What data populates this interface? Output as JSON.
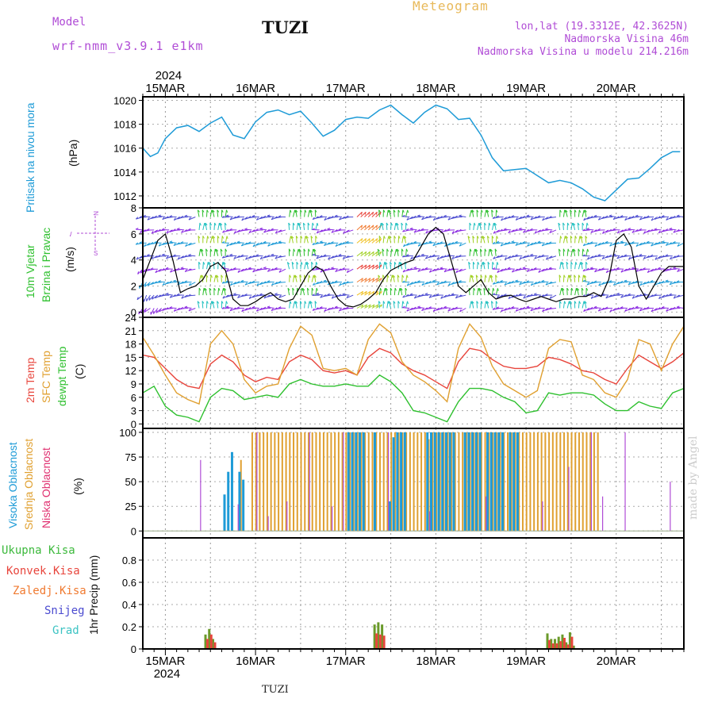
{
  "header": {
    "model_label": "Model",
    "model_run": "wrf-nmm_v3.9.1 e1km",
    "station": "TUZI",
    "title": "Meteogram",
    "lonlat": "lon,lat (19.3312E, 42.3625N)",
    "elevation": "Nadmorska Visina 46m",
    "model_elevation": "Nadmorska Visina u modelu 214.216m"
  },
  "footer": {
    "station": "TUZI",
    "watermark": "made by Angel"
  },
  "time_axis": {
    "year": "2024",
    "day_labels": [
      "15MAR",
      "16MAR",
      "17MAR",
      "18MAR",
      "19MAR",
      "20MAR"
    ],
    "x_range_hours": [
      -6,
      138
    ]
  },
  "colors": {
    "pressure": "#1e9bd7",
    "wind_speed": "#000000",
    "temp_2m": "#e8453c",
    "temp_sfc": "#e0a030",
    "dewpoint": "#2ec02e",
    "cloud_high": "#1e9bd7",
    "cloud_mid": "#e0a030",
    "cloud_low": "#b04cd6",
    "precip_total": "#3cb93c",
    "precip_conv": "#e8453c",
    "precip_frozen": "#f07a30",
    "precip_snow": "#4b4bd0",
    "precip_grad": "#3cc3c3"
  },
  "panel_labels": {
    "pressure": [
      "Pritisak na nivou mora",
      "(hPa)"
    ],
    "wind": [
      "10m Vjetar",
      "Brzina i Pravac",
      "(m/s)"
    ],
    "wind_compass": {
      "n": "N",
      "e": "E",
      "w": "W",
      "s": "S"
    },
    "temp": [
      "2m Temp",
      "SFC Temp",
      "dewpt Temp",
      "(C)"
    ],
    "cloud": [
      "Visoka Oblacnost",
      "Srednja Oblacnost",
      "Niska Oblacnost",
      "(%)"
    ],
    "precip_legend": [
      "Ukupna Kisa",
      "Konvek.Kisa",
      "Zaledj.Kisa",
      "Snijeg",
      "Grad"
    ],
    "precip_axis": "1hr Precip (mm)"
  },
  "chart_data": [
    {
      "type": "line",
      "panel": "pressure",
      "ylabel": "(hPa)",
      "ylim": [
        1011,
        1020.3
      ],
      "yticks": [
        1012,
        1014,
        1016,
        1018,
        1020
      ],
      "x": [
        -6,
        -4,
        -2,
        0,
        3,
        6,
        9,
        12,
        15,
        18,
        21,
        24,
        27,
        30,
        33,
        36,
        39,
        42,
        45,
        48,
        51,
        54,
        57,
        60,
        63,
        66,
        69,
        72,
        75,
        78,
        81,
        84,
        87,
        90,
        93,
        96,
        99,
        102,
        105,
        108,
        111,
        114,
        117,
        120,
        123,
        126,
        129,
        132,
        135,
        137
      ],
      "series": [
        {
          "name": "Pritisak na nivou mora",
          "values": [
            1016.0,
            1015.3,
            1015.6,
            1016.8,
            1017.7,
            1017.9,
            1017.4,
            1018.1,
            1018.6,
            1017.1,
            1016.8,
            1018.2,
            1019.0,
            1019.2,
            1018.8,
            1019.1,
            1018.1,
            1017.0,
            1017.5,
            1018.4,
            1018.6,
            1018.5,
            1019.2,
            1019.6,
            1018.8,
            1018.1,
            1019.0,
            1019.6,
            1019.3,
            1018.4,
            1018.5,
            1017.1,
            1015.2,
            1014.1,
            1014.2,
            1014.3,
            1013.7,
            1013.1,
            1013.3,
            1013.1,
            1012.6,
            1011.9,
            1011.6,
            1012.5,
            1013.4,
            1013.5,
            1014.3,
            1015.2,
            1015.7,
            1015.7
          ]
        }
      ]
    },
    {
      "type": "line",
      "panel": "wind",
      "ylabel": "(m/s)",
      "ylim": [
        -0.4,
        8
      ],
      "yticks": [
        0,
        2,
        4,
        6,
        8
      ],
      "x": [
        -6,
        -4,
        -2,
        0,
        2,
        4,
        6,
        8,
        10,
        12,
        14,
        16,
        18,
        20,
        22,
        24,
        26,
        28,
        30,
        32,
        34,
        36,
        38,
        40,
        42,
        44,
        46,
        48,
        50,
        52,
        54,
        56,
        58,
        60,
        62,
        64,
        66,
        68,
        70,
        72,
        74,
        76,
        78,
        80,
        82,
        84,
        86,
        88,
        90,
        92,
        94,
        96,
        98,
        100,
        102,
        104,
        106,
        108,
        110,
        112,
        114,
        116,
        118,
        120,
        122,
        124,
        126,
        128,
        130,
        132,
        134,
        136,
        138
      ],
      "series": [
        {
          "name": "10m Vjetar",
          "values": [
            2.5,
            4.0,
            5.5,
            6.0,
            4.0,
            1.5,
            1.8,
            2.0,
            2.5,
            3.5,
            3.8,
            3.2,
            1.0,
            0.5,
            0.5,
            0.8,
            1.2,
            1.5,
            1.0,
            0.8,
            1.0,
            2.0,
            3.0,
            3.5,
            3.2,
            2.0,
            1.0,
            0.5,
            0.4,
            0.6,
            1.0,
            1.5,
            2.5,
            3.2,
            3.5,
            3.8,
            4.0,
            5.0,
            6.0,
            6.5,
            6.0,
            4.0,
            2.0,
            1.5,
            2.0,
            2.5,
            1.5,
            1.0,
            1.2,
            1.3,
            1.0,
            0.8,
            1.0,
            1.2,
            1.0,
            0.8,
            1.0,
            1.0,
            1.2,
            1.2,
            1.5,
            1.2,
            2.5,
            5.5,
            6.0,
            5.0,
            2.0,
            1.0,
            2.0,
            3.0,
            3.5,
            3.5,
            3.5
          ]
        }
      ],
      "wind_barbs": "direction arrows every hour, colored by speed; strong southerly flow bands near 15MAR 12h, 16MAR 12h, 17MAR 12h, 18MAR 12h and 19MAR 12h"
    },
    {
      "type": "line",
      "panel": "temperature",
      "ylabel": "(C)",
      "ylim": [
        -1,
        24
      ],
      "yticks": [
        0,
        3,
        6,
        9,
        12,
        15,
        18,
        21,
        24
      ],
      "x": [
        -6,
        -3,
        0,
        3,
        6,
        9,
        12,
        15,
        18,
        21,
        24,
        27,
        30,
        33,
        36,
        39,
        42,
        45,
        48,
        51,
        54,
        57,
        60,
        63,
        66,
        69,
        72,
        75,
        78,
        81,
        84,
        87,
        90,
        93,
        96,
        99,
        102,
        105,
        108,
        111,
        114,
        117,
        120,
        123,
        126,
        129,
        132,
        135,
        138
      ],
      "series": [
        {
          "name": "2m Temp",
          "values": [
            15.5,
            15.0,
            12.5,
            10.0,
            8.5,
            8.0,
            13.5,
            15.5,
            14.0,
            11.0,
            9.5,
            10.5,
            10.0,
            14.0,
            15.5,
            14.5,
            12.0,
            11.5,
            12.0,
            11.0,
            15.0,
            17.0,
            16.0,
            13.5,
            12.0,
            11.0,
            9.5,
            8.0,
            14.0,
            17.0,
            16.5,
            14.5,
            13.0,
            12.5,
            12.5,
            13.0,
            15.0,
            14.5,
            13.5,
            12.0,
            11.5,
            10.0,
            9.0,
            12.5,
            15.5,
            14.0,
            12.5,
            14.0,
            16.0
          ]
        },
        {
          "name": "SFC Temp",
          "values": [
            19.5,
            15.5,
            11.0,
            7.0,
            5.5,
            4.5,
            18.0,
            21.0,
            18.0,
            10.0,
            7.0,
            8.5,
            9.0,
            17.0,
            22.0,
            20.0,
            12.5,
            12.0,
            12.5,
            11.0,
            19.0,
            22.5,
            20.5,
            14.0,
            11.0,
            9.5,
            7.5,
            5.0,
            17.0,
            22.5,
            19.5,
            13.0,
            9.0,
            7.5,
            6.0,
            7.5,
            17.0,
            19.0,
            18.5,
            11.0,
            10.0,
            7.0,
            6.0,
            10.0,
            19.0,
            18.0,
            12.0,
            18.0,
            22.0
          ]
        },
        {
          "name": "dewpt Temp",
          "values": [
            7.0,
            8.5,
            4.0,
            2.0,
            1.5,
            0.5,
            6.0,
            8.0,
            7.5,
            5.5,
            6.0,
            6.5,
            6.0,
            9.0,
            10.0,
            9.0,
            8.5,
            8.5,
            9.0,
            8.5,
            8.5,
            11.0,
            9.5,
            7.0,
            3.0,
            2.5,
            1.5,
            0.5,
            5.0,
            8.0,
            8.0,
            7.5,
            6.0,
            5.0,
            2.5,
            3.0,
            7.0,
            6.5,
            7.0,
            7.0,
            6.5,
            4.5,
            3.0,
            3.0,
            5.0,
            4.0,
            3.5,
            7.0,
            8.0
          ]
        }
      ]
    },
    {
      "type": "bar",
      "panel": "cloud",
      "ylabel": "(%)",
      "ylim": [
        -7,
        104
      ],
      "yticks": [
        0,
        25,
        50,
        75,
        100
      ],
      "series": [
        {
          "name": "Visoka Oblacnost",
          "x": [
            16,
            17,
            18,
            20,
            21,
            49,
            50,
            51,
            52,
            53,
            56,
            60,
            61,
            62,
            63,
            64,
            70,
            71,
            72,
            73,
            74,
            75,
            76,
            77,
            80,
            81,
            82,
            83,
            84,
            86,
            87,
            88,
            89,
            90,
            92,
            93,
            94
          ],
          "values": [
            37,
            60,
            80,
            60,
            52,
            100,
            100,
            100,
            100,
            100,
            100,
            30,
            95,
            100,
            100,
            100,
            100,
            100,
            100,
            100,
            100,
            100,
            100,
            100,
            100,
            100,
            100,
            100,
            100,
            100,
            100,
            100,
            100,
            100,
            100,
            100,
            100
          ]
        },
        {
          "name": "Srednja Oblacnost",
          "x": [
            20,
            23,
            24,
            25,
            26,
            27,
            28,
            29,
            30,
            31,
            32,
            33,
            34,
            35,
            36,
            37,
            38,
            39,
            40,
            41,
            42,
            43,
            44,
            45,
            46,
            47,
            48,
            49,
            50,
            51,
            52,
            53,
            54,
            55,
            56,
            57,
            58,
            59,
            60,
            61,
            62,
            63,
            64,
            65,
            66,
            67,
            68,
            69,
            70,
            71,
            72,
            73,
            74,
            75,
            76,
            77,
            78,
            79,
            80,
            81,
            82,
            83,
            84,
            85,
            86,
            87,
            88,
            89,
            90,
            91,
            92,
            93,
            94,
            95,
            96,
            97,
            98,
            99,
            100,
            101,
            102,
            103,
            104,
            105,
            106,
            107,
            108,
            109,
            110,
            111,
            112,
            113,
            114,
            115
          ],
          "values": [
            72,
            100,
            100,
            100,
            100,
            100,
            100,
            100,
            100,
            100,
            100,
            100,
            100,
            100,
            100,
            100,
            100,
            100,
            100,
            100,
            100,
            100,
            100,
            100,
            100,
            100,
            100,
            100,
            100,
            100,
            100,
            100,
            100,
            100,
            100,
            100,
            100,
            100,
            100,
            100,
            100,
            100,
            100,
            100,
            100,
            100,
            100,
            100,
            93,
            100,
            100,
            100,
            100,
            100,
            100,
            100,
            100,
            100,
            100,
            100,
            100,
            100,
            100,
            100,
            100,
            100,
            100,
            100,
            100,
            100,
            100,
            100,
            100,
            100,
            100,
            100,
            100,
            100,
            100,
            100,
            100,
            100,
            100,
            100,
            100,
            100,
            100,
            100,
            100,
            100,
            100,
            100,
            100,
            100
          ]
        },
        {
          "name": "Niska Oblacnost",
          "x": [
            9,
            19,
            24,
            27,
            32,
            38,
            44,
            47,
            59,
            70,
            85,
            100,
            107,
            113,
            116,
            122,
            134
          ],
          "values": [
            72,
            27,
            100,
            15,
            30,
            100,
            25,
            100,
            100,
            20,
            35,
            30,
            65,
            100,
            35,
            100,
            50
          ]
        }
      ]
    },
    {
      "type": "bar",
      "panel": "precipitation",
      "ylabel": "1hr Precip (mm)",
      "ylim": [
        0,
        1.0
      ],
      "yticks": [
        0,
        0.2,
        0.4,
        0.6,
        0.8
      ],
      "series": [
        {
          "name": "Ukupna Kisa",
          "x": [
            11,
            12,
            13,
            14,
            56,
            57,
            58,
            59,
            102,
            103,
            104,
            105,
            106,
            107,
            108,
            109,
            110
          ],
          "values": [
            0.13,
            0.18,
            0.09,
            0.0,
            0.22,
            0.24,
            0.22,
            0.0,
            0.14,
            0.09,
            0.09,
            0.11,
            0.13,
            0.06,
            0.15,
            0.03,
            0.0
          ]
        },
        {
          "name": "Konvek.Kisa",
          "x": [
            11,
            12,
            13,
            56,
            57,
            58,
            102,
            103,
            104,
            105,
            106,
            107,
            108
          ],
          "values": [
            0.09,
            0.13,
            0.06,
            0.14,
            0.13,
            0.12,
            0.08,
            0.05,
            0.05,
            0.07,
            0.1,
            0.04,
            0.11
          ]
        }
      ]
    }
  ]
}
